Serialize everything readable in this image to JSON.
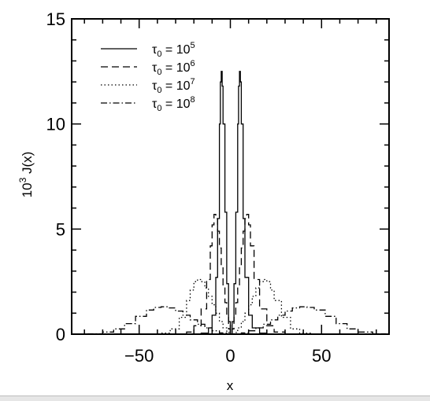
{
  "chart_data": {
    "type": "line",
    "title": "",
    "xlabel": "x",
    "ylabel_prefix": "10",
    "ylabel_exponent": "3",
    "ylabel_suffix": " J(x)",
    "xlim": [
      -87,
      87
    ],
    "ylim": [
      0,
      15
    ],
    "xticks": [
      -50,
      0,
      50
    ],
    "xtick_labels": [
      "−50",
      "0",
      "50"
    ],
    "yticks": [
      0,
      5,
      10,
      15
    ],
    "ytick_labels": [
      "0",
      "5",
      "10",
      "15"
    ],
    "x_minor_step": 10,
    "y_minor_step": 1,
    "grid": false,
    "legend_position": "top-left",
    "series": [
      {
        "legend_prefix": "τ",
        "legend_sub": "0",
        "legend_eq": " = 10",
        "legend_exp": "5",
        "style": "solid",
        "x": [
          -20,
          -16,
          -12,
          -10,
          -8,
          -7,
          -6,
          -5.5,
          -5,
          -4.5,
          -4,
          -3,
          -2,
          -1,
          0,
          1,
          2,
          3,
          4,
          4.5,
          5,
          5.5,
          6,
          7,
          8,
          10,
          12,
          16,
          20
        ],
        "y": [
          0,
          0.05,
          0.3,
          0.9,
          2.7,
          5.5,
          10.0,
          12.0,
          12.5,
          11.8,
          10.0,
          5.8,
          2.4,
          0.6,
          0,
          0.6,
          2.4,
          5.8,
          10.0,
          11.8,
          12.5,
          12.0,
          10.0,
          5.5,
          2.7,
          0.9,
          0.3,
          0.05,
          0
        ]
      },
      {
        "legend_prefix": "τ",
        "legend_sub": "0",
        "legend_eq": " = 10",
        "legend_exp": "6",
        "style": "dashed",
        "x": [
          -30,
          -24,
          -20,
          -16,
          -13,
          -11,
          -10,
          -9,
          -8,
          -7,
          -6,
          -5,
          -4,
          -3,
          -2,
          -1,
          0,
          1,
          2,
          3,
          4,
          5,
          6,
          7,
          8,
          9,
          10,
          11,
          13,
          16,
          20,
          24,
          30
        ],
        "y": [
          0,
          0.1,
          0.4,
          1.2,
          2.6,
          4.2,
          5.2,
          5.7,
          5.5,
          4.9,
          4.1,
          3.2,
          2.3,
          1.5,
          0.8,
          0.25,
          0,
          0.25,
          0.8,
          1.5,
          2.3,
          3.2,
          4.1,
          4.9,
          5.5,
          5.7,
          5.2,
          4.2,
          2.6,
          1.2,
          0.4,
          0.1,
          0
        ]
      },
      {
        "legend_prefix": "τ",
        "legend_sub": "0",
        "legend_eq": " = 10",
        "legend_exp": "7",
        "style": "dotted",
        "x": [
          -45,
          -38,
          -33,
          -28,
          -24,
          -22,
          -20,
          -18,
          -16,
          -14,
          -12,
          -10,
          -8,
          -6,
          -4,
          -2,
          0,
          2,
          4,
          6,
          8,
          10,
          12,
          14,
          16,
          18,
          20,
          22,
          24,
          28,
          33,
          38,
          45
        ],
        "y": [
          0,
          0.05,
          0.25,
          0.8,
          1.6,
          2.1,
          2.5,
          2.6,
          2.5,
          2.2,
          1.8,
          1.4,
          1.0,
          0.6,
          0.3,
          0.08,
          0,
          0.08,
          0.3,
          0.6,
          1.0,
          1.4,
          1.8,
          2.2,
          2.5,
          2.6,
          2.5,
          2.1,
          1.6,
          0.8,
          0.25,
          0.05,
          0
        ]
      },
      {
        "legend_prefix": "τ",
        "legend_sub": "0",
        "legend_eq": " = 10",
        "legend_exp": "8",
        "style": "dashdot",
        "x": [
          -85,
          -78,
          -70,
          -64,
          -58,
          -52,
          -46,
          -42,
          -38,
          -34,
          -30,
          -26,
          -22,
          -18,
          -14,
          -10,
          -6,
          -2,
          0,
          2,
          6,
          10,
          14,
          18,
          22,
          26,
          30,
          34,
          38,
          42,
          46,
          52,
          58,
          64,
          70,
          78,
          85
        ],
        "y": [
          0,
          0.02,
          0.1,
          0.25,
          0.5,
          0.85,
          1.15,
          1.27,
          1.3,
          1.25,
          1.1,
          0.9,
          0.68,
          0.47,
          0.3,
          0.16,
          0.06,
          0.01,
          0,
          0.01,
          0.06,
          0.16,
          0.3,
          0.47,
          0.68,
          0.9,
          1.1,
          1.25,
          1.3,
          1.27,
          1.15,
          0.85,
          0.5,
          0.25,
          0.1,
          0.02,
          0
        ]
      }
    ]
  }
}
